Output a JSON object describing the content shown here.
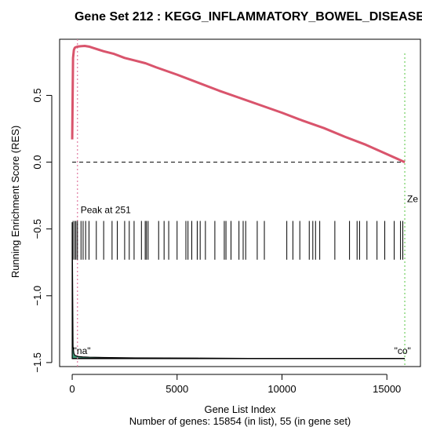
{
  "chart_data": {
    "type": "line",
    "title": "Gene Set  212 : KEGG_INFLAMMATORY_BOWEL_DISEASE",
    "xlabel": "Gene List Index",
    "subtitle": "Number of genes: 15854 (in list), 55 (in gene set)",
    "ylabel": "Running Enrichment Score (RES)",
    "xlim": [
      -600,
      16600
    ],
    "ylim": [
      -1.53,
      0.92
    ],
    "x_ticks": [
      0,
      5000,
      10000,
      15000
    ],
    "x_tick_labels": [
      "0",
      "5000",
      "10000",
      "15000"
    ],
    "y_ticks": [
      -1.5,
      -1.0,
      -0.5,
      0.0,
      0.5
    ],
    "y_tick_labels": [
      "−1.5",
      "−1.0",
      "−0.5",
      "0.0",
      "0.5"
    ],
    "grid": false,
    "series": [
      {
        "color": "#d9546c",
        "x": [
          0,
          40,
          80,
          120,
          160,
          200,
          251,
          400,
          600,
          800,
          1000,
          1500,
          2000,
          2500,
          3000,
          3500,
          4000,
          5000,
          6000,
          7000,
          8000,
          9000,
          10000,
          11000,
          12000,
          13000,
          14000,
          15000,
          15854
        ],
        "y": [
          0.17,
          0.78,
          0.84,
          0.855,
          0.86,
          0.862,
          0.865,
          0.868,
          0.87,
          0.865,
          0.855,
          0.83,
          0.81,
          0.78,
          0.76,
          0.74,
          0.71,
          0.655,
          0.595,
          0.535,
          0.48,
          0.425,
          0.37,
          0.31,
          0.255,
          0.19,
          0.13,
          0.06,
          0.0
        ]
      }
    ],
    "hits": [
      40,
      120,
      180,
      251,
      420,
      520,
      640,
      800,
      1150,
      1500,
      1900,
      2150,
      2500,
      2720,
      2950,
      3300,
      3480,
      3540,
      3620,
      4120,
      4380,
      4600,
      5000,
      5420,
      5520,
      5700,
      5960,
      6100,
      6350,
      6800,
      7250,
      7330,
      7570,
      7950,
      8150,
      8270,
      8820,
      9160,
      10230,
      10520,
      10850,
      11300,
      11470,
      11600,
      11800,
      12520,
      13220,
      13580,
      13700,
      14050,
      14530,
      14900,
      15350,
      15650,
      15760
    ],
    "hit_band": [
      -0.73,
      -0.44
    ],
    "peak": {
      "x": 251,
      "label": "Peak at 251"
    },
    "zero_cross": {
      "x": 15854,
      "label": "Ze"
    },
    "zero_line": 0.0,
    "metric": {
      "fill_color": "#3f9a7a",
      "x": [
        0,
        40,
        80,
        120,
        200,
        300,
        500,
        800,
        1500,
        3000,
        6000,
        10000,
        14000,
        15854
      ],
      "y": [
        -0.45,
        -1.38,
        -1.43,
        -1.445,
        -1.45,
        -1.455,
        -1.458,
        -1.46,
        -1.462,
        -1.465,
        -1.467,
        -1.47,
        -1.47,
        -1.47
      ],
      "baseline": -1.47
    },
    "annotations": [
      {
        "text": "\"na\"",
        "x": 60,
        "y": -1.435
      },
      {
        "text": "\"co\"",
        "x": 15350,
        "y": -1.435
      }
    ]
  }
}
